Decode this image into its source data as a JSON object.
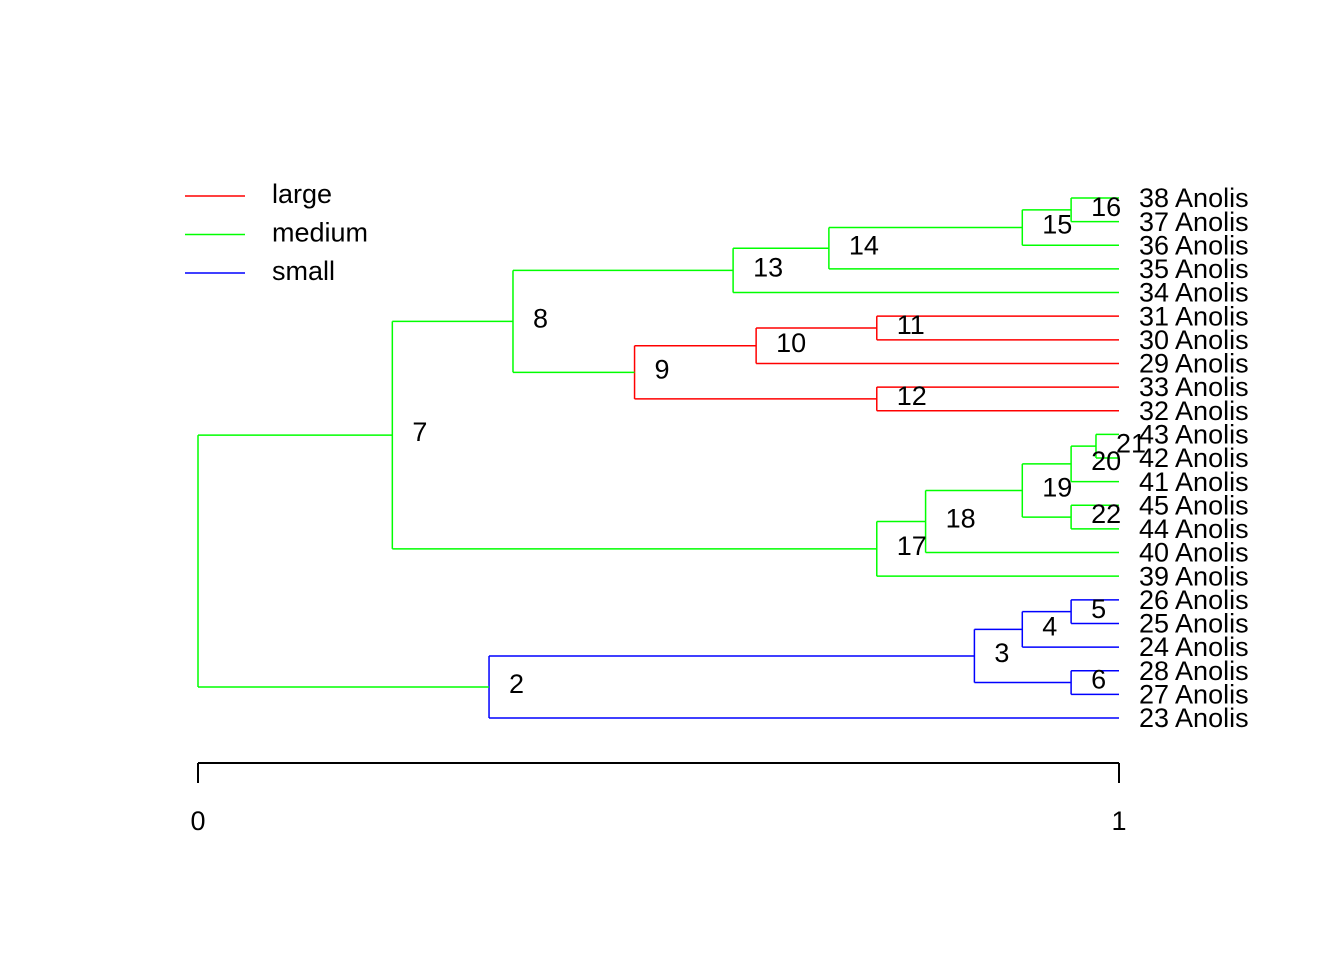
{
  "chart_data": {
    "type": "tree",
    "states": [
      {
        "name": "large",
        "color": "#ff0000"
      },
      {
        "name": "medium",
        "color": "#00ff00"
      },
      {
        "name": "small",
        "color": "#0000ff"
      }
    ],
    "xlim": [
      0,
      1
    ],
    "xticks": [
      0,
      1
    ],
    "nodes": [
      {
        "x": 0,
        "parent": null,
        "state": "medium"
      },
      {
        "label": "2",
        "x": 0.316,
        "parent": 0,
        "edge_state": "medium",
        "state": "small"
      },
      {
        "label": "3",
        "x": 0.843,
        "parent": 1,
        "edge_state": "small",
        "state": "small"
      },
      {
        "label": "4",
        "x": 0.895,
        "parent": 2,
        "edge_state": "small",
        "state": "small"
      },
      {
        "label": "5",
        "x": 0.948,
        "parent": 3,
        "edge_state": "small",
        "state": "small"
      },
      {
        "label": "6",
        "x": 0.948,
        "parent": 2,
        "edge_state": "small",
        "state": "small"
      },
      {
        "label": "7",
        "x": 0.211,
        "parent": 0,
        "edge_state": "medium",
        "state": "medium"
      },
      {
        "label": "8",
        "x": 0.342,
        "parent": 6,
        "edge_state": "medium",
        "state": "medium"
      },
      {
        "label": "9",
        "x": 0.474,
        "parent": 7,
        "edge_state": "medium",
        "state": "large"
      },
      {
        "label": "10",
        "x": 0.606,
        "parent": 8,
        "edge_state": "large",
        "state": "large"
      },
      {
        "label": "11",
        "x": 0.737,
        "parent": 9,
        "edge_state": "large",
        "state": "large"
      },
      {
        "label": "12",
        "x": 0.737,
        "parent": 8,
        "edge_state": "large",
        "state": "large"
      },
      {
        "label": "13",
        "x": 0.581,
        "parent": 7,
        "edge_state": "medium",
        "state": "medium"
      },
      {
        "label": "14",
        "x": 0.685,
        "parent": 12,
        "edge_state": "medium",
        "state": "medium"
      },
      {
        "label": "15",
        "x": 0.895,
        "parent": 13,
        "edge_state": "medium",
        "state": "medium"
      },
      {
        "label": "16",
        "x": 0.948,
        "parent": 14,
        "edge_state": "medium",
        "state": "medium"
      },
      {
        "label": "17",
        "x": 0.737,
        "parent": 6,
        "edge_state": "medium",
        "state": "medium"
      },
      {
        "label": "18",
        "x": 0.79,
        "parent": 16,
        "edge_state": "medium",
        "state": "medium"
      },
      {
        "label": "19",
        "x": 0.895,
        "parent": 17,
        "edge_state": "medium",
        "state": "medium"
      },
      {
        "label": "20",
        "x": 0.948,
        "parent": 18,
        "edge_state": "medium",
        "state": "medium"
      },
      {
        "label": "21",
        "x": 0.975,
        "parent": 19,
        "edge_state": "medium",
        "state": "medium"
      },
      {
        "label": "22",
        "x": 0.948,
        "parent": 18,
        "edge_state": "medium",
        "state": "medium"
      }
    ],
    "tips": [
      {
        "label": "38 Anolis",
        "x": 1,
        "parent": 15,
        "edge_state": "medium"
      },
      {
        "label": "37 Anolis",
        "x": 1,
        "parent": 15,
        "edge_state": "medium"
      },
      {
        "label": "36 Anolis",
        "x": 1,
        "parent": 14,
        "edge_state": "medium"
      },
      {
        "label": "35 Anolis",
        "x": 1,
        "parent": 13,
        "edge_state": "medium"
      },
      {
        "label": "34 Anolis",
        "x": 1,
        "parent": 12,
        "edge_state": "medium"
      },
      {
        "label": "31 Anolis",
        "x": 1,
        "parent": 10,
        "edge_state": "large"
      },
      {
        "label": "30 Anolis",
        "x": 1,
        "parent": 10,
        "edge_state": "large"
      },
      {
        "label": "29 Anolis",
        "x": 1,
        "parent": 9,
        "edge_state": "large"
      },
      {
        "label": "33 Anolis",
        "x": 1,
        "parent": 11,
        "edge_state": "large"
      },
      {
        "label": "32 Anolis",
        "x": 1,
        "parent": 11,
        "edge_state": "large"
      },
      {
        "label": "43 Anolis",
        "x": 1,
        "parent": 20,
        "edge_state": "medium"
      },
      {
        "label": "42 Anolis",
        "x": 1,
        "parent": 20,
        "edge_state": "medium"
      },
      {
        "label": "41 Anolis",
        "x": 1,
        "parent": 19,
        "edge_state": "medium"
      },
      {
        "label": "45 Anolis",
        "x": 1,
        "parent": 21,
        "edge_state": "medium"
      },
      {
        "label": "44 Anolis",
        "x": 1,
        "parent": 21,
        "edge_state": "medium"
      },
      {
        "label": "40 Anolis",
        "x": 1,
        "parent": 17,
        "edge_state": "medium"
      },
      {
        "label": "39 Anolis",
        "x": 1,
        "parent": 16,
        "edge_state": "medium"
      },
      {
        "label": "26 Anolis",
        "x": 1,
        "parent": 4,
        "edge_state": "small"
      },
      {
        "label": "25 Anolis",
        "x": 1,
        "parent": 4,
        "edge_state": "small"
      },
      {
        "label": "24 Anolis",
        "x": 1,
        "parent": 3,
        "edge_state": "small"
      },
      {
        "label": "28 Anolis",
        "x": 1,
        "parent": 5,
        "edge_state": "small"
      },
      {
        "label": "27 Anolis",
        "x": 1,
        "parent": 5,
        "edge_state": "small"
      },
      {
        "label": "23 Anolis",
        "x": 1,
        "parent": 1,
        "edge_state": "small"
      }
    ]
  }
}
